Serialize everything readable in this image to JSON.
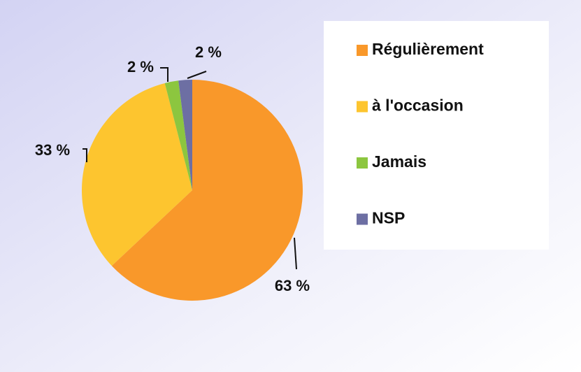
{
  "chart_data": {
    "type": "pie",
    "categories": [
      "Régulièrement",
      "à l'occasion",
      "Jamais",
      "NSP"
    ],
    "values": [
      63,
      33,
      2,
      2
    ],
    "value_labels": [
      "63 %",
      "33 %",
      "2 %",
      "2 %"
    ],
    "colors": [
      "#f9982a",
      "#fdc52f",
      "#8cc63f",
      "#6d6fa3"
    ],
    "legend": "right"
  }
}
